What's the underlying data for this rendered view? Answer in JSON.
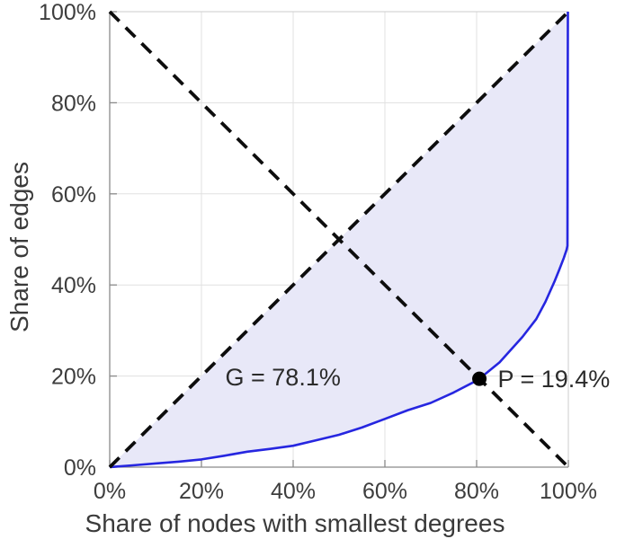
{
  "chart_data": {
    "type": "line",
    "title": "",
    "xlabel": "Share of nodes with smallest degrees",
    "ylabel": "Share of edges",
    "xlim": [
      0,
      100
    ],
    "ylim": [
      0,
      100
    ],
    "grid": true,
    "legend": "none",
    "tick_values": [
      0,
      20,
      40,
      60,
      80,
      100
    ],
    "x_tick_labels": [
      "0%",
      "20%",
      "40%",
      "60%",
      "80%",
      "100%"
    ],
    "y_tick_labels": [
      "0%",
      "20%",
      "40%",
      "60%",
      "80%",
      "100%"
    ],
    "series": [
      {
        "name": "lorenz-curve",
        "type": "line",
        "style": "solid",
        "color": "#2626e0",
        "points": [
          [
            0,
            0
          ],
          [
            5,
            0.4
          ],
          [
            10,
            0.8
          ],
          [
            15,
            1.2
          ],
          [
            20,
            1.7
          ],
          [
            25,
            2.5
          ],
          [
            30,
            3.4
          ],
          [
            35,
            4.0
          ],
          [
            40,
            4.7
          ],
          [
            45,
            5.9
          ],
          [
            50,
            7.1
          ],
          [
            55,
            8.7
          ],
          [
            60,
            10.6
          ],
          [
            65,
            12.5
          ],
          [
            70,
            14.1
          ],
          [
            75,
            16.4
          ],
          [
            80,
            19.0
          ],
          [
            80.6,
            19.4
          ],
          [
            85,
            23.0
          ],
          [
            90,
            28.6
          ],
          [
            93,
            32.5
          ],
          [
            95,
            36.3
          ],
          [
            97,
            40.8
          ],
          [
            98,
            43.3
          ],
          [
            99,
            45.9
          ],
          [
            99.6,
            47.7
          ],
          [
            99.8,
            48.6
          ],
          [
            99.9,
            100
          ]
        ]
      },
      {
        "name": "equality-diagonal",
        "type": "line",
        "style": "dashed",
        "color": "#0d0d0d",
        "points": [
          [
            0,
            0
          ],
          [
            100,
            100
          ]
        ]
      },
      {
        "name": "anti-diagonal",
        "type": "line",
        "style": "dashed",
        "color": "#0d0d0d",
        "points": [
          [
            0,
            100
          ],
          [
            100,
            0
          ]
        ]
      }
    ],
    "fill_between": {
      "upper": "equality-diagonal",
      "lower": "lorenz-curve",
      "color": "#e8e8f8"
    },
    "marker_point": {
      "x": 80.6,
      "y": 19.4,
      "color": "#000000"
    },
    "annotations": [
      {
        "id": "gini",
        "text": "G = 78.1%",
        "x": 25.2,
        "y": 17.9
      },
      {
        "id": "pareto",
        "text": "P = 19.4%",
        "x": 84.6,
        "y": 17.6
      }
    ]
  },
  "colors": {
    "background": "#ffffff",
    "grid": "#e0e0e0",
    "axis_main": "#8a8a8a",
    "axis_box": "#cccccc",
    "tick_text": "#3d3d3d",
    "label_text": "#3a3a3a",
    "annotation_text": "#2b2b2b"
  }
}
